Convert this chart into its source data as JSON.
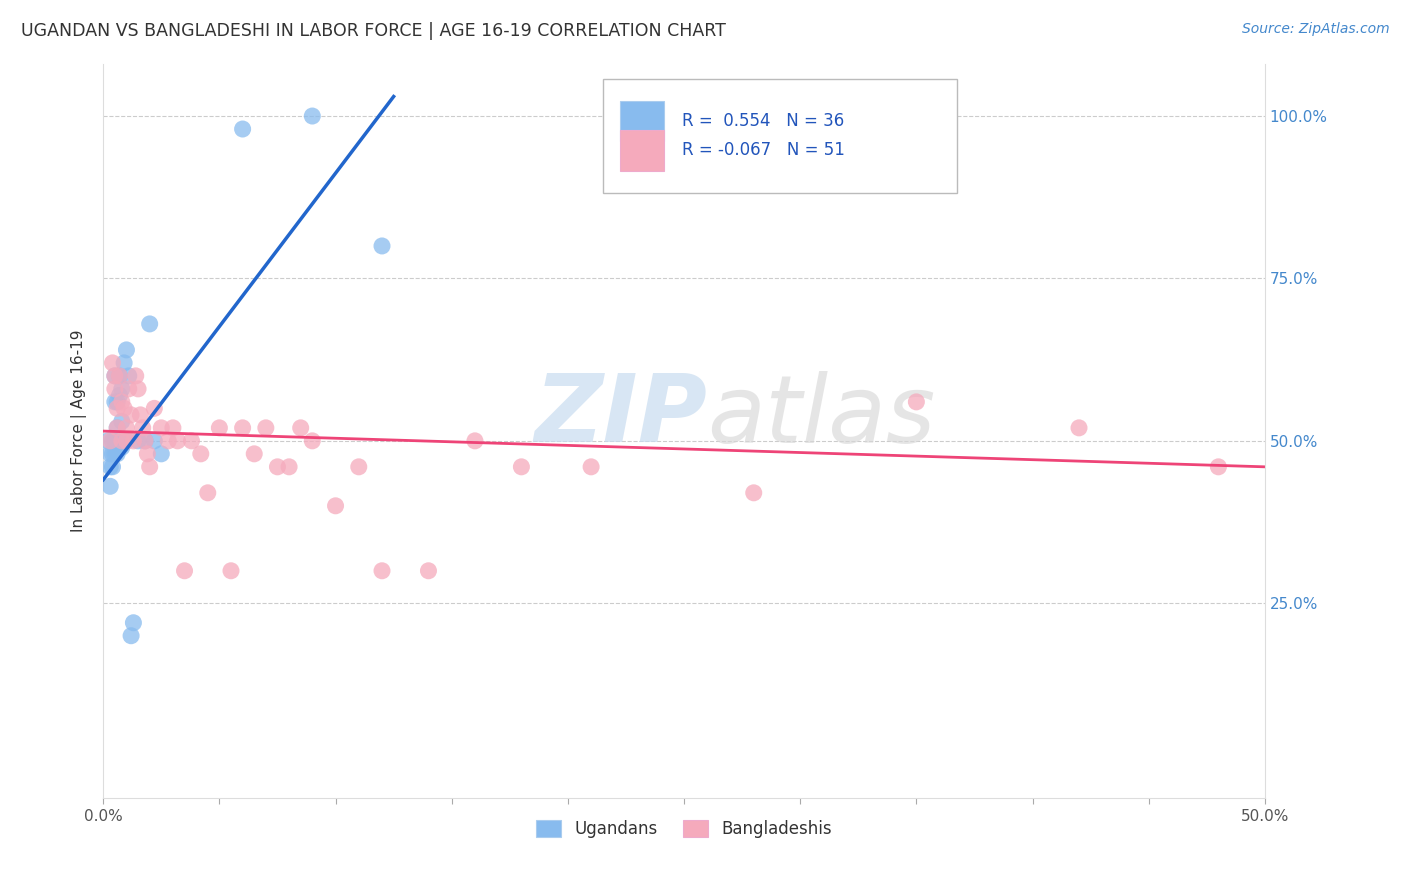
{
  "title": "UGANDAN VS BANGLADESHI IN LABOR FORCE | AGE 16-19 CORRELATION CHART",
  "source": "Source: ZipAtlas.com",
  "ylabel": "In Labor Force | Age 16-19",
  "xlim": [
    0.0,
    0.5
  ],
  "ylim": [
    -0.05,
    1.08
  ],
  "xtick_positions": [
    0.0,
    0.05,
    0.1,
    0.15,
    0.2,
    0.25,
    0.3,
    0.35,
    0.4,
    0.45,
    0.5
  ],
  "xtick_labels": [
    "0.0%",
    "",
    "",
    "",
    "",
    "",
    "",
    "",
    "",
    "",
    "50.0%"
  ],
  "ytick_positions": [
    0.25,
    0.5,
    0.75,
    1.0
  ],
  "ytick_labels": [
    "25.0%",
    "50.0%",
    "75.0%",
    "100.0%"
  ],
  "ugandan_R": "0.554",
  "ugandan_N": "36",
  "bangladeshi_R": "-0.067",
  "bangladeshi_N": "51",
  "ugandan_color": "#88BBEE",
  "bangladeshi_color": "#F5AABC",
  "ugandan_line_color": "#2266CC",
  "bangladeshi_line_color": "#EE4477",
  "watermark_zip": "ZIP",
  "watermark_atlas": "atlas",
  "ugandan_x": [
    0.002,
    0.003,
    0.003,
    0.003,
    0.004,
    0.004,
    0.004,
    0.005,
    0.005,
    0.005,
    0.005,
    0.006,
    0.006,
    0.006,
    0.006,
    0.007,
    0.007,
    0.007,
    0.008,
    0.008,
    0.008,
    0.009,
    0.009,
    0.01,
    0.01,
    0.011,
    0.012,
    0.013,
    0.015,
    0.018,
    0.02,
    0.022,
    0.025,
    0.06,
    0.09,
    0.12
  ],
  "ugandan_y": [
    0.5,
    0.48,
    0.46,
    0.43,
    0.5,
    0.48,
    0.46,
    0.6,
    0.56,
    0.5,
    0.48,
    0.56,
    0.52,
    0.5,
    0.48,
    0.6,
    0.57,
    0.5,
    0.58,
    0.53,
    0.49,
    0.62,
    0.5,
    0.64,
    0.5,
    0.6,
    0.2,
    0.22,
    0.5,
    0.5,
    0.68,
    0.5,
    0.48,
    0.98,
    1.0,
    0.8
  ],
  "bangladeshi_x": [
    0.003,
    0.004,
    0.005,
    0.005,
    0.006,
    0.006,
    0.007,
    0.008,
    0.008,
    0.009,
    0.01,
    0.01,
    0.011,
    0.012,
    0.013,
    0.014,
    0.015,
    0.016,
    0.017,
    0.018,
    0.019,
    0.02,
    0.022,
    0.025,
    0.028,
    0.03,
    0.032,
    0.035,
    0.038,
    0.042,
    0.045,
    0.05,
    0.055,
    0.06,
    0.065,
    0.07,
    0.075,
    0.08,
    0.085,
    0.09,
    0.1,
    0.11,
    0.12,
    0.14,
    0.16,
    0.18,
    0.21,
    0.28,
    0.35,
    0.42,
    0.48
  ],
  "bangladeshi_y": [
    0.5,
    0.62,
    0.6,
    0.58,
    0.55,
    0.52,
    0.6,
    0.56,
    0.5,
    0.55,
    0.52,
    0.5,
    0.58,
    0.54,
    0.5,
    0.6,
    0.58,
    0.54,
    0.52,
    0.5,
    0.48,
    0.46,
    0.55,
    0.52,
    0.5,
    0.52,
    0.5,
    0.3,
    0.5,
    0.48,
    0.42,
    0.52,
    0.3,
    0.52,
    0.48,
    0.52,
    0.46,
    0.46,
    0.52,
    0.5,
    0.4,
    0.46,
    0.3,
    0.3,
    0.5,
    0.46,
    0.46,
    0.42,
    0.56,
    0.52,
    0.46
  ],
  "ug_line_x0": 0.0,
  "ug_line_x1": 0.125,
  "ug_line_y0": 0.44,
  "ug_line_y1": 1.03,
  "bd_line_x0": 0.0,
  "bd_line_x1": 0.5,
  "bd_line_y0": 0.515,
  "bd_line_y1": 0.46
}
